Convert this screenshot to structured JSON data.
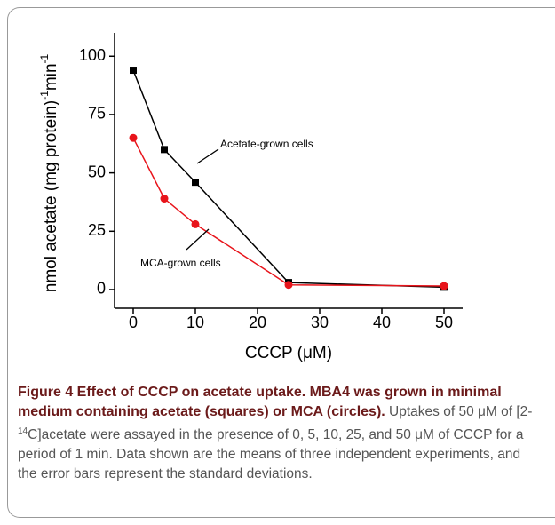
{
  "chart_data": {
    "type": "line",
    "xlabel": "CCCP (μM)",
    "ylabel": [
      "nmol acetate (mg protein)",
      "-1",
      "min",
      "-1"
    ],
    "x": [
      0,
      5,
      10,
      25,
      50
    ],
    "series": [
      {
        "name": "Acetate-grown cells",
        "color": "#000000",
        "marker": "square",
        "values": [
          94,
          60,
          46,
          3,
          1
        ]
      },
      {
        "name": "MCA-grown cells",
        "color": "#e8141b",
        "marker": "circle",
        "values": [
          65,
          39,
          28,
          2,
          1.5
        ]
      }
    ],
    "xlim": [
      -3,
      53
    ],
    "xticks": [
      0,
      10,
      20,
      30,
      40,
      50
    ],
    "ylim": [
      -8,
      110
    ],
    "yticks": [
      0,
      25,
      50,
      75,
      100
    ],
    "grid": false
  },
  "caption": {
    "bold": "Figure 4 Effect of CCCP on acetate uptake. MBA4 was grown in minimal medium containing acetate (squares) or MCA (circles).",
    "text_before": "Uptakes of 50 μM of [2-",
    "superscript": "14",
    "text_after": "C]acetate were assayed in the presence of 0, 5, 10, 25, and 50 μM of CCCP for a period of 1 min. Data shown are the means of three independent experiments, and the error bars represent the standard deviations."
  }
}
